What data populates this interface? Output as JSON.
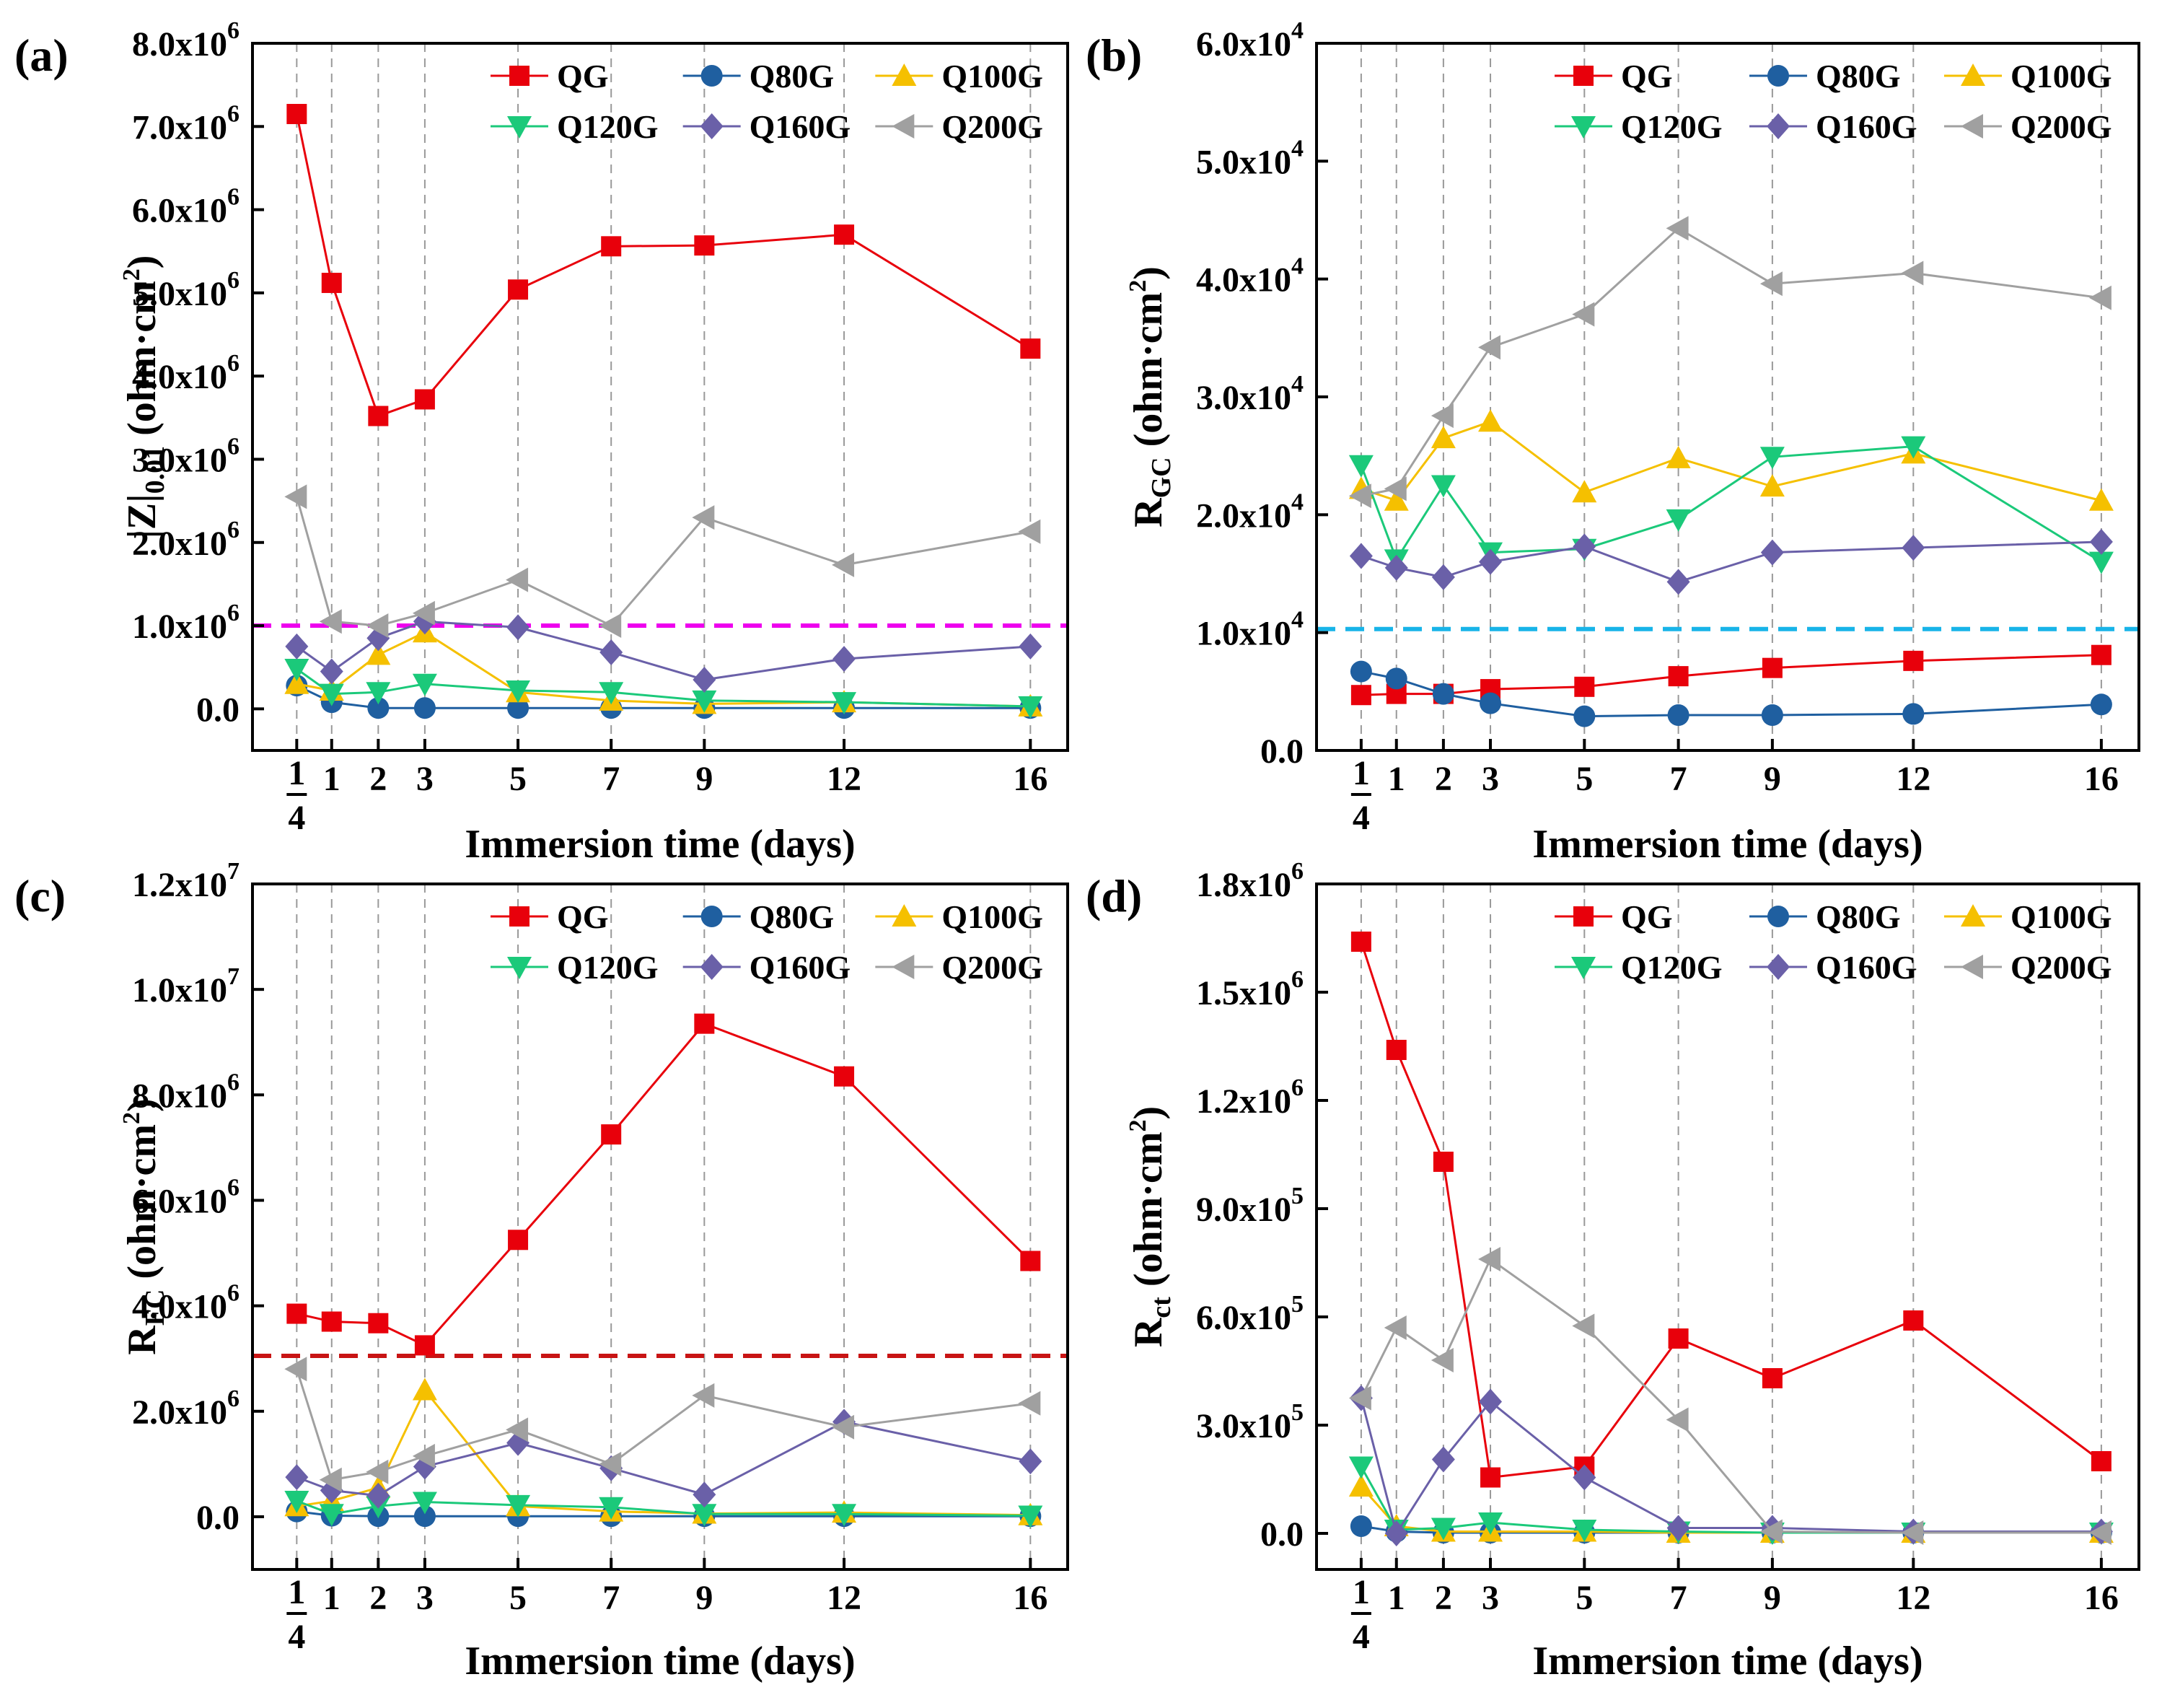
{
  "chart_data": [
    {
      "panel": "(a)",
      "type": "line",
      "title": "",
      "xlabel": "Immersion time (days)",
      "ylabel_main": "|Z|",
      "ylabel_sub": "0.01",
      "ylabel_unit_pre": " (ohm·cm",
      "ylabel_unit_sup": "2",
      "ylabel_unit_post": ")",
      "ylim": [
        -0.5,
        8.0
      ],
      "yticks": [
        0,
        1,
        2,
        3,
        4,
        5,
        6,
        7,
        8
      ],
      "ytick_mant": [
        "0.0",
        "1.0x10",
        "2.0x10",
        "3.0x10",
        "4.0x10",
        "5.0x10",
        "6.0x10",
        "7.0x10",
        "8.0x10"
      ],
      "ytick_exp": [
        "",
        "6",
        "6",
        "6",
        "6",
        "6",
        "6",
        "6",
        "6"
      ],
      "y_multiplier": "1e6",
      "threshold": 1.0,
      "threshold_color": "#ee00ee",
      "series": [
        {
          "name": "QG",
          "values": [
            7.15,
            5.12,
            3.52,
            3.72,
            5.04,
            5.56,
            5.57,
            5.7,
            4.33
          ]
        },
        {
          "name": "Q80G",
          "values": [
            0.28,
            0.08,
            0.01,
            0.01,
            0.01,
            0.01,
            0.01,
            0.01,
            0.01
          ]
        },
        {
          "name": "Q100G",
          "values": [
            0.3,
            0.22,
            0.65,
            0.92,
            0.2,
            0.1,
            0.06,
            0.08,
            0.03
          ]
        },
        {
          "name": "Q120G",
          "values": [
            0.48,
            0.18,
            0.2,
            0.3,
            0.22,
            0.2,
            0.1,
            0.08,
            0.03
          ]
        },
        {
          "name": "Q160G",
          "values": [
            0.75,
            0.45,
            0.85,
            1.05,
            0.98,
            0.68,
            0.35,
            0.6,
            0.75
          ]
        },
        {
          "name": "Q200G",
          "values": [
            2.55,
            1.05,
            1.0,
            1.15,
            1.55,
            1.0,
            2.3,
            1.73,
            2.13
          ]
        }
      ]
    },
    {
      "panel": "(b)",
      "type": "line",
      "title": "",
      "xlabel": "Immersion time (days)",
      "ylabel_main": "R",
      "ylabel_sub": "GC",
      "ylabel_unit_pre": " (ohm·cm",
      "ylabel_unit_sup": "2",
      "ylabel_unit_post": ")",
      "ylim": [
        0,
        6.0
      ],
      "yticks": [
        0,
        1,
        2,
        3,
        4,
        5,
        6
      ],
      "ytick_mant": [
        "0.0",
        "1.0x10",
        "2.0x10",
        "3.0x10",
        "4.0x10",
        "5.0x10",
        "6.0x10"
      ],
      "ytick_exp": [
        "",
        "4",
        "4",
        "4",
        "4",
        "4",
        "4"
      ],
      "y_multiplier": "1e4",
      "threshold": 1.03,
      "threshold_color": "#18b4e8",
      "series": [
        {
          "name": "QG",
          "values": [
            0.47,
            0.48,
            0.48,
            0.52,
            0.54,
            0.63,
            0.7,
            0.76,
            0.81
          ]
        },
        {
          "name": "Q80G",
          "values": [
            0.67,
            0.61,
            0.48,
            0.4,
            0.29,
            0.3,
            0.3,
            0.31,
            0.39
          ]
        },
        {
          "name": "Q100G",
          "values": [
            2.22,
            2.12,
            2.65,
            2.79,
            2.19,
            2.48,
            2.24,
            2.52,
            2.12
          ]
        },
        {
          "name": "Q120G",
          "values": [
            2.42,
            1.62,
            2.25,
            1.68,
            1.71,
            1.96,
            2.49,
            2.58,
            1.6
          ]
        },
        {
          "name": "Q160G",
          "values": [
            1.65,
            1.55,
            1.47,
            1.6,
            1.73,
            1.43,
            1.68,
            1.72,
            1.77
          ]
        },
        {
          "name": "Q200G",
          "values": [
            2.16,
            2.22,
            2.84,
            3.42,
            3.7,
            4.43,
            3.96,
            4.05,
            3.84
          ]
        }
      ]
    },
    {
      "panel": "(c)",
      "type": "line",
      "title": "",
      "xlabel": "Immersion time (days)",
      "ylabel_main": "R",
      "ylabel_sub": "FC",
      "ylabel_unit_pre": " (ohm·cm",
      "ylabel_unit_sup": "2",
      "ylabel_unit_post": ")",
      "ylim": [
        -1.0,
        12.0
      ],
      "yticks": [
        0,
        2,
        4,
        6,
        8,
        10,
        12
      ],
      "ytick_mant": [
        "0.0",
        "2.0x10",
        "4.0x10",
        "6.0x10",
        "8.0x10",
        "1.0x10",
        "1.2x10"
      ],
      "ytick_exp": [
        "",
        "6",
        "6",
        "6",
        "6",
        "7",
        "7"
      ],
      "y_multiplier": "1e6",
      "threshold": 3.05,
      "threshold_color": "#c81414",
      "series": [
        {
          "name": "QG",
          "values": [
            3.85,
            3.7,
            3.67,
            3.25,
            5.25,
            7.25,
            9.35,
            8.35,
            4.85
          ]
        },
        {
          "name": "Q80G",
          "values": [
            0.1,
            0.02,
            0.01,
            0.01,
            0.01,
            0.01,
            0.01,
            0.01,
            0.01
          ]
        },
        {
          "name": "Q100G",
          "values": [
            0.2,
            0.3,
            0.55,
            2.4,
            0.2,
            0.1,
            0.06,
            0.08,
            0.03
          ]
        },
        {
          "name": "Q120G",
          "values": [
            0.3,
            0.05,
            0.2,
            0.28,
            0.22,
            0.18,
            0.05,
            0.05,
            0.02
          ]
        },
        {
          "name": "Q160G",
          "values": [
            0.75,
            0.5,
            0.4,
            0.95,
            1.4,
            0.92,
            0.42,
            1.8,
            1.05
          ]
        },
        {
          "name": "Q200G",
          "values": [
            2.8,
            0.7,
            0.85,
            1.15,
            1.65,
            1.0,
            2.3,
            1.7,
            2.15
          ]
        }
      ]
    },
    {
      "panel": "(d)",
      "type": "line",
      "title": "",
      "xlabel": "Immersion time (days)",
      "ylabel_main": "R",
      "ylabel_sub": "ct",
      "ylabel_unit_pre": " (ohm·cm",
      "ylabel_unit_sup": "2",
      "ylabel_unit_post": ")",
      "ylim": [
        -1.0,
        18.0
      ],
      "yticks": [
        0,
        3,
        6,
        9,
        12,
        15,
        18
      ],
      "ytick_mant": [
        "0.0",
        "3.0x10",
        "6.0x10",
        "9.0x10",
        "1.2x10",
        "1.5x10",
        "1.8x10"
      ],
      "ytick_exp": [
        "",
        "5",
        "5",
        "5",
        "6",
        "6",
        "6"
      ],
      "y_multiplier": "1e5",
      "threshold": null,
      "threshold_color": "",
      "series": [
        {
          "name": "QG",
          "values": [
            16.4,
            13.4,
            10.3,
            1.55,
            1.85,
            5.4,
            4.3,
            5.9,
            2.0
          ]
        },
        {
          "name": "Q80G",
          "values": [
            0.2,
            0.05,
            0.02,
            0.02,
            0.02,
            0.02,
            0.02,
            0.02,
            0.02
          ]
        },
        {
          "name": "Q100G",
          "values": [
            1.3,
            0.2,
            0.05,
            0.05,
            0.05,
            0.02,
            0.02,
            0.02,
            0.02
          ]
        },
        {
          "name": "Q120G",
          "values": [
            1.85,
            0.1,
            0.15,
            0.3,
            0.1,
            0.05,
            0.02,
            0.02,
            0.02
          ]
        },
        {
          "name": "Q160G",
          "values": [
            3.75,
            0.0,
            2.05,
            3.65,
            1.55,
            0.15,
            0.15,
            0.05,
            0.05
          ]
        },
        {
          "name": "Q200G",
          "values": [
            3.75,
            5.7,
            4.8,
            7.6,
            5.75,
            3.15,
            0.05,
            0.02,
            0.02
          ]
        }
      ]
    }
  ],
  "x_values": [
    0.25,
    1,
    2,
    3,
    5,
    7,
    9,
    12,
    16
  ],
  "x_tick_labels": [
    "",
    "1",
    "2",
    "3",
    "5",
    "7",
    "9",
    "12",
    "16"
  ],
  "quarter_tick": {
    "numerator": "1",
    "denominator": "4"
  },
  "series_styles": [
    {
      "name": "QG",
      "color": "#e8000b",
      "marker": "square"
    },
    {
      "name": "Q80G",
      "color": "#1f5fa0",
      "marker": "circle"
    },
    {
      "name": "Q100G",
      "color": "#f5c000",
      "marker": "triangle-up"
    },
    {
      "name": "Q120G",
      "color": "#1bc97a",
      "marker": "triangle-down"
    },
    {
      "name": "Q160G",
      "color": "#6a60a8",
      "marker": "diamond"
    },
    {
      "name": "Q200G",
      "color": "#a0a0a0",
      "marker": "triangle-left"
    }
  ]
}
